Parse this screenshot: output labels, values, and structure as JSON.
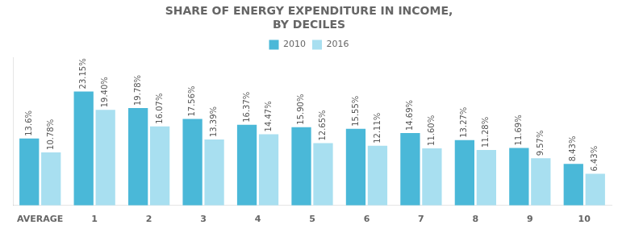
{
  "chart_data": {
    "type": "bar",
    "title": "SHARE OF ENERGY EXPENDITURE IN INCOME,\nBY DECILES",
    "categories": [
      "AVERAGE",
      "1",
      "2",
      "3",
      "4",
      "5",
      "6",
      "7",
      "8",
      "9",
      "10"
    ],
    "series": [
      {
        "name": "2010",
        "color": "#4ab8d8",
        "values": [
          13.6,
          23.15,
          19.78,
          17.56,
          16.37,
          15.9,
          15.55,
          14.69,
          13.27,
          11.69,
          8.43
        ],
        "value_labels": [
          "13.6%",
          "23.15%",
          "19.78%",
          "17.56%",
          "16.37%",
          "15.90%",
          "15.55%",
          "14.69%",
          "13.27%",
          "11.69%",
          "8.43%"
        ]
      },
      {
        "name": "2016",
        "color": "#a8dff0",
        "values": [
          10.78,
          19.4,
          16.07,
          13.39,
          14.47,
          12.65,
          12.11,
          11.6,
          11.28,
          9.57,
          6.43
        ],
        "value_labels": [
          "10.78%",
          "19.40%",
          "16.07%",
          "13.39%",
          "14.47%",
          "12.65%",
          "12.11%",
          "11.60%",
          "11.28%",
          "9.57%",
          "6.43%"
        ]
      }
    ],
    "ylim": [
      0,
      30
    ],
    "grid": false,
    "legend": "top",
    "data_labels": true,
    "tick_labels": "x"
  }
}
